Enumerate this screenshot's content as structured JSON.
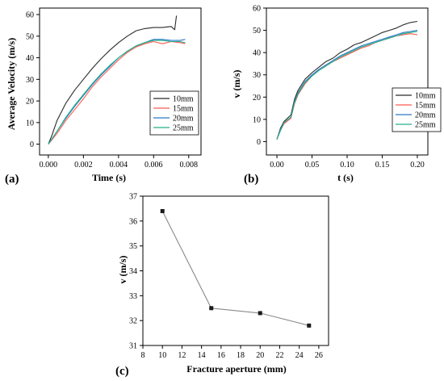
{
  "chart_data": [
    {
      "id": "a",
      "panel_label": "(a)",
      "type": "line",
      "title": "",
      "xlabel": "Time (s)",
      "ylabel": "Average Velocity (m/s)",
      "xlim": [
        -0.0005,
        0.0087
      ],
      "ylim": [
        -5,
        63
      ],
      "xticks": [
        {
          "value": 0.0,
          "label": "0.000"
        },
        {
          "value": 0.002,
          "label": "0.002"
        },
        {
          "value": 0.004,
          "label": "0.004"
        },
        {
          "value": 0.006,
          "label": "0.006"
        },
        {
          "value": 0.008,
          "label": "0.008"
        }
      ],
      "yticks": [
        {
          "value": 0,
          "label": "0"
        },
        {
          "value": 10,
          "label": "10"
        },
        {
          "value": 20,
          "label": "20"
        },
        {
          "value": 30,
          "label": "30"
        },
        {
          "value": 40,
          "label": "40"
        },
        {
          "value": 50,
          "label": "50"
        },
        {
          "value": 60,
          "label": "60"
        }
      ],
      "grid": false,
      "legend_position": "center-right",
      "series": [
        {
          "name": "10mm",
          "color": "#2b2b2b",
          "x": [
            0,
            0.0002,
            0.0005,
            0.001,
            0.0015,
            0.002,
            0.0025,
            0.003,
            0.0035,
            0.004,
            0.0045,
            0.005,
            0.0055,
            0.006,
            0.0065,
            0.007,
            0.0072,
            0.0073
          ],
          "y": [
            0,
            4,
            11,
            19,
            25,
            30,
            35,
            39.5,
            43.5,
            47,
            50,
            52.5,
            53.5,
            54,
            54,
            54.5,
            53,
            59.5
          ]
        },
        {
          "name": "15mm",
          "color": "#ff5a4f",
          "x": [
            0,
            0.0005,
            0.001,
            0.0015,
            0.002,
            0.0025,
            0.003,
            0.0035,
            0.004,
            0.0045,
            0.005,
            0.0055,
            0.006,
            0.0065,
            0.007,
            0.0075,
            0.0078
          ],
          "y": [
            0,
            5,
            11,
            16,
            21,
            26.5,
            31,
            35,
            39,
            42.5,
            45,
            46.5,
            47.5,
            46.5,
            47.5,
            47,
            46.5
          ]
        },
        {
          "name": "20mm",
          "color": "#2a78c6",
          "x": [
            0,
            0.0005,
            0.001,
            0.0015,
            0.002,
            0.0025,
            0.003,
            0.0035,
            0.004,
            0.0045,
            0.005,
            0.0055,
            0.006,
            0.0065,
            0.007,
            0.0075,
            0.0078
          ],
          "y": [
            0,
            6,
            12,
            17.5,
            22.5,
            27.5,
            32,
            36,
            40,
            43,
            45.5,
            47,
            48.5,
            48.5,
            48,
            48,
            48.5
          ]
        },
        {
          "name": "25mm",
          "color": "#21b08a",
          "x": [
            0,
            0.0005,
            0.001,
            0.0015,
            0.002,
            0.0025,
            0.003,
            0.0035,
            0.004,
            0.0045,
            0.005,
            0.0055,
            0.006,
            0.0065,
            0.007,
            0.0075,
            0.0078
          ],
          "y": [
            0,
            6,
            12.5,
            18,
            23,
            28,
            32.5,
            36.5,
            40,
            43,
            45.5,
            47,
            48,
            48,
            47.5,
            47.5,
            47
          ]
        }
      ]
    },
    {
      "id": "b",
      "panel_label": "(b)",
      "type": "line",
      "title": "",
      "xlabel": "t (s)",
      "ylabel": "v (m/s)",
      "xlim": [
        -0.015,
        0.215
      ],
      "ylim": [
        -6,
        60
      ],
      "xticks": [
        {
          "value": 0.0,
          "label": "0.00"
        },
        {
          "value": 0.05,
          "label": "0.05"
        },
        {
          "value": 0.1,
          "label": "0.10"
        },
        {
          "value": 0.15,
          "label": "0.15"
        },
        {
          "value": 0.2,
          "label": "0.20"
        }
      ],
      "yticks": [
        {
          "value": 0,
          "label": "0"
        },
        {
          "value": 10,
          "label": "10"
        },
        {
          "value": 20,
          "label": "20"
        },
        {
          "value": 30,
          "label": "30"
        },
        {
          "value": 40,
          "label": "40"
        },
        {
          "value": 50,
          "label": "50"
        },
        {
          "value": 60,
          "label": "60"
        }
      ],
      "grid": false,
      "legend_position": "bottom-right",
      "series": [
        {
          "name": "10mm",
          "color": "#2b2b2b",
          "x": [
            0,
            0.005,
            0.01,
            0.02,
            0.025,
            0.03,
            0.04,
            0.05,
            0.06,
            0.07,
            0.08,
            0.09,
            0.1,
            0.11,
            0.12,
            0.13,
            0.14,
            0.15,
            0.16,
            0.17,
            0.18,
            0.19,
            0.2
          ],
          "y": [
            1,
            6,
            9,
            12,
            19,
            23,
            28,
            31,
            33.5,
            36,
            37.5,
            40,
            41.5,
            43.5,
            44.5,
            46,
            47.5,
            49,
            50,
            51,
            52.5,
            53.5,
            54
          ]
        },
        {
          "name": "15mm",
          "color": "#ff5a4f",
          "x": [
            0,
            0.005,
            0.01,
            0.02,
            0.025,
            0.03,
            0.04,
            0.05,
            0.06,
            0.07,
            0.08,
            0.09,
            0.1,
            0.11,
            0.12,
            0.13,
            0.14,
            0.15,
            0.16,
            0.17,
            0.18,
            0.19,
            0.2
          ],
          "y": [
            1,
            5,
            8,
            10.5,
            17,
            21,
            26,
            29.5,
            32,
            34,
            36,
            37.5,
            39,
            40.5,
            42,
            43,
            44.5,
            45.5,
            46.5,
            47.5,
            48,
            48.5,
            48
          ]
        },
        {
          "name": "20mm",
          "color": "#2a78c6",
          "x": [
            0,
            0.005,
            0.01,
            0.02,
            0.025,
            0.03,
            0.04,
            0.05,
            0.06,
            0.07,
            0.08,
            0.09,
            0.1,
            0.11,
            0.12,
            0.13,
            0.14,
            0.15,
            0.16,
            0.17,
            0.18,
            0.19,
            0.2
          ],
          "y": [
            1,
            5.5,
            8.5,
            11,
            18,
            22,
            27,
            30,
            32.5,
            34.5,
            36.5,
            38.5,
            40,
            41.5,
            43,
            44,
            45,
            46,
            47,
            48,
            49,
            49.5,
            50
          ]
        },
        {
          "name": "25mm",
          "color": "#21b08a",
          "x": [
            0,
            0.005,
            0.01,
            0.02,
            0.025,
            0.03,
            0.04,
            0.05,
            0.06,
            0.07,
            0.08,
            0.09,
            0.1,
            0.11,
            0.12,
            0.13,
            0.14,
            0.15,
            0.16,
            0.17,
            0.18,
            0.19,
            0.2
          ],
          "y": [
            1,
            5,
            8.5,
            11,
            17.5,
            21.5,
            26.5,
            29.5,
            32,
            34,
            36,
            38,
            39.5,
            41,
            42.5,
            43.5,
            44.5,
            45.5,
            46.5,
            47.5,
            48.5,
            49,
            49.5
          ]
        }
      ]
    },
    {
      "id": "c",
      "panel_label": "(c)",
      "type": "line",
      "title": "",
      "xlabel": "Fracture aperture (mm)",
      "ylabel": "v (m/s)",
      "xlim": [
        8,
        27
      ],
      "ylim": [
        31,
        37
      ],
      "xticks": [
        {
          "value": 8,
          "label": "8"
        },
        {
          "value": 10,
          "label": "10"
        },
        {
          "value": 12,
          "label": "12"
        },
        {
          "value": 14,
          "label": "14"
        },
        {
          "value": 16,
          "label": "16"
        },
        {
          "value": 18,
          "label": "18"
        },
        {
          "value": 20,
          "label": "20"
        },
        {
          "value": 22,
          "label": "22"
        },
        {
          "value": 24,
          "label": "24"
        },
        {
          "value": 26,
          "label": "26"
        }
      ],
      "yticks": [
        {
          "value": 31,
          "label": "31"
        },
        {
          "value": 32,
          "label": "32"
        },
        {
          "value": 33,
          "label": "33"
        },
        {
          "value": 34,
          "label": "34"
        },
        {
          "value": 35,
          "label": "35"
        },
        {
          "value": 36,
          "label": "36"
        },
        {
          "value": 37,
          "label": "37"
        }
      ],
      "grid": false,
      "legend_position": "none",
      "marker": "square",
      "series": [
        {
          "name": "",
          "color": "#1a1a1a",
          "line_color": "#8a8a8a",
          "x": [
            10,
            15,
            20,
            25
          ],
          "y": [
            36.4,
            32.5,
            32.3,
            31.8
          ]
        }
      ]
    }
  ]
}
